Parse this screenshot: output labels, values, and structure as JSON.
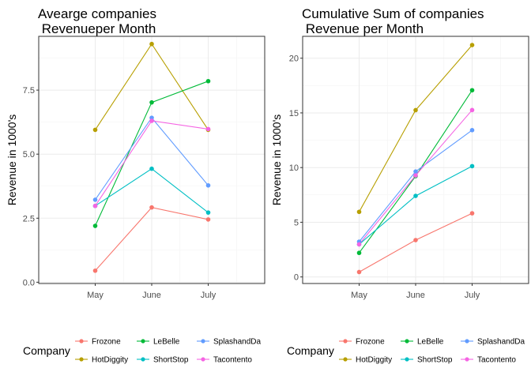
{
  "chart_data": [
    {
      "type": "line",
      "title_line1": "Avearge companies",
      "title_line2": " Revenueper Month",
      "xlabel": "",
      "ylabel": "Revenue in 1000's",
      "categories": [
        "May",
        "June",
        "July"
      ],
      "ylim": [
        -0.05,
        9.6
      ],
      "yticks": [
        0.0,
        2.5,
        5.0,
        7.5
      ],
      "ytick_labels": [
        "0.0",
        "2.5",
        "5.0",
        "7.5"
      ],
      "grid": true,
      "series": [
        {
          "name": "Frozone",
          "color": "#F8766D",
          "values": [
            0.45,
            2.92,
            2.45
          ]
        },
        {
          "name": "HotDiggity",
          "color": "#B79F00",
          "values": [
            5.95,
            9.3,
            5.95
          ]
        },
        {
          "name": "LeBelle",
          "color": "#00BA38",
          "values": [
            2.2,
            7.02,
            7.85
          ]
        },
        {
          "name": "ShortStop",
          "color": "#00BFC4",
          "values": [
            2.98,
            4.43,
            2.72
          ]
        },
        {
          "name": "SplashandDa",
          "color": "#619CFF",
          "values": [
            3.22,
            6.42,
            3.78
          ]
        },
        {
          "name": "Tacontento",
          "color": "#F564E3",
          "values": [
            2.98,
            6.3,
            5.98
          ]
        }
      ]
    },
    {
      "type": "line",
      "title_line1": "Cumulative Sum of companies",
      "title_line2": " Revenue per Month",
      "xlabel": "",
      "ylabel": "Revenue in 1000's",
      "categories": [
        "May",
        "June",
        "July"
      ],
      "ylim": [
        -0.6,
        22.0
      ],
      "yticks": [
        0,
        5,
        10,
        15,
        20
      ],
      "ytick_labels": [
        "0",
        "5",
        "10",
        "15",
        "20"
      ],
      "grid": true,
      "series": [
        {
          "name": "Frozone",
          "color": "#F8766D",
          "values": [
            0.45,
            3.37,
            5.82
          ]
        },
        {
          "name": "HotDiggity",
          "color": "#B79F00",
          "values": [
            5.95,
            15.25,
            21.2
          ]
        },
        {
          "name": "LeBelle",
          "color": "#00BA38",
          "values": [
            2.2,
            9.22,
            17.07
          ]
        },
        {
          "name": "ShortStop",
          "color": "#00BFC4",
          "values": [
            2.98,
            7.41,
            10.13
          ]
        },
        {
          "name": "SplashandDa",
          "color": "#619CFF",
          "values": [
            3.22,
            9.64,
            13.42
          ]
        },
        {
          "name": "Tacontento",
          "color": "#F564E3",
          "values": [
            2.98,
            9.28,
            15.26
          ]
        }
      ]
    }
  ],
  "legend": {
    "title": "Company",
    "position": "bottom",
    "items": [
      {
        "name": "Frozone",
        "color": "#F8766D"
      },
      {
        "name": "HotDiggity",
        "color": "#B79F00"
      },
      {
        "name": "LeBelle",
        "color": "#00BA38"
      },
      {
        "name": "ShortStop",
        "color": "#00BFC4"
      },
      {
        "name": "SplashandDa",
        "color": "#619CFF"
      },
      {
        "name": "Tacontento",
        "color": "#F564E3"
      }
    ]
  }
}
